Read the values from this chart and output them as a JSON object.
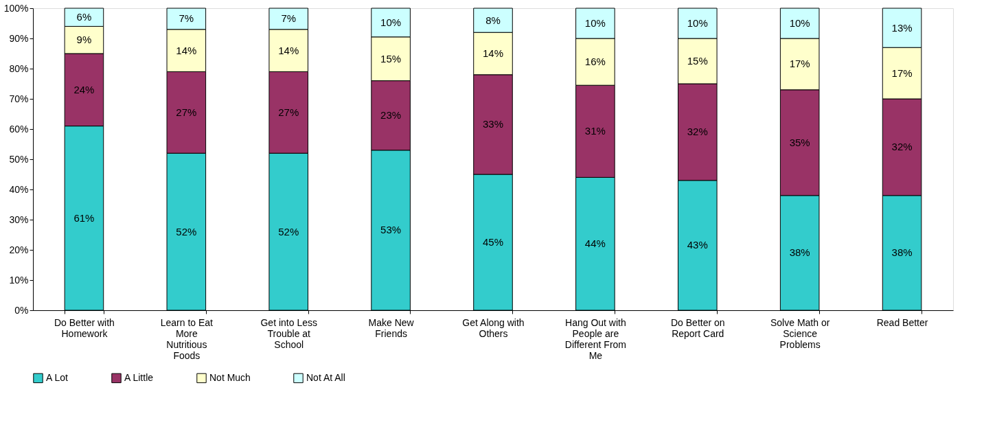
{
  "chart_data": {
    "type": "bar",
    "stacked": true,
    "legend": "bottom",
    "grid": false,
    "categories": [
      "Do Better with Homework",
      "Learn to Eat More Nutritious Foods",
      "Get into Less Trouble at School",
      "Make New Friends",
      "Get Along with Others",
      "Hang Out with People are Different From Me",
      "Do Better on Report Card",
      "Solve Math or Science Problems",
      "Read Better"
    ],
    "ylim": [
      0,
      100
    ],
    "yticks": [
      {
        "value": 0,
        "label": "0%"
      },
      {
        "value": 10,
        "label": "10%"
      },
      {
        "value": 20,
        "label": "20%"
      },
      {
        "value": 30,
        "label": "30%"
      },
      {
        "value": 40,
        "label": "40%"
      },
      {
        "value": 50,
        "label": "50%"
      },
      {
        "value": 60,
        "label": "60%"
      },
      {
        "value": 70,
        "label": "70%"
      },
      {
        "value": 80,
        "label": "80%"
      },
      {
        "value": 90,
        "label": "90%"
      },
      {
        "value": 100,
        "label": "100%"
      }
    ],
    "series": [
      {
        "name": "A Lot",
        "color": "#33cccc",
        "values": [
          61,
          52,
          52,
          53,
          45,
          44,
          43,
          38,
          38
        ],
        "value_labels": [
          "61%",
          "52%",
          "52%",
          "53%",
          "45%",
          "44%",
          "43%",
          "38%",
          "38%"
        ]
      },
      {
        "name": "A Little",
        "color": "#993366",
        "values": [
          24,
          27,
          27,
          23,
          33,
          30.5,
          32,
          35,
          32
        ],
        "value_labels": [
          "24%",
          "27%",
          "27%",
          "23%",
          "33%",
          "31%",
          "32%",
          "35%",
          "32%"
        ]
      },
      {
        "name": "Not Much",
        "color": "#ffffcc",
        "values": [
          9,
          14,
          14,
          14.5,
          14,
          15.5,
          15,
          17,
          17
        ],
        "value_labels": [
          "9%",
          "14%",
          "14%",
          "15%",
          "14%",
          "16%",
          "15%",
          "17%",
          "17%"
        ]
      },
      {
        "name": "Not At All",
        "color": "#ccffff",
        "values": [
          6,
          7,
          7,
          9.5,
          8,
          10,
          10,
          10,
          13
        ],
        "value_labels": [
          "6%",
          "7%",
          "7%",
          "10%",
          "8%",
          "10%",
          "10%",
          "10%",
          "13%"
        ]
      }
    ]
  }
}
